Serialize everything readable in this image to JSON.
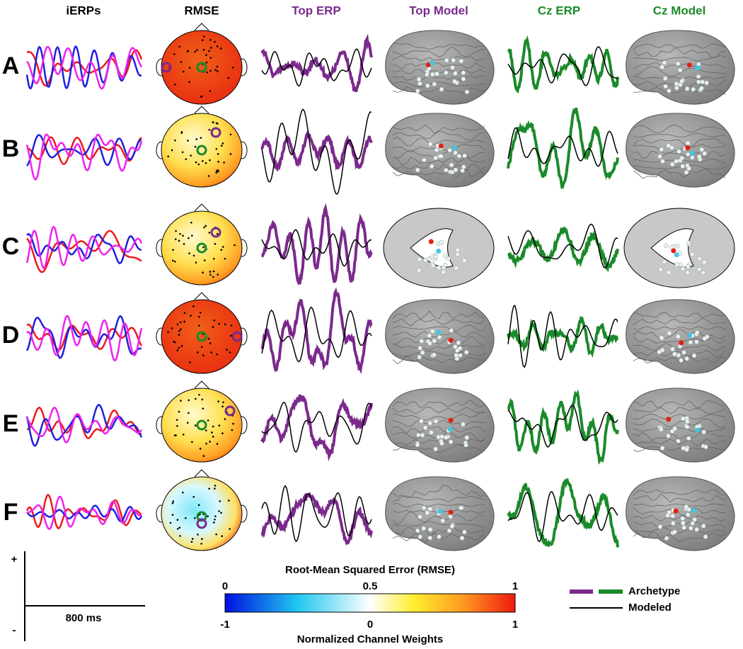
{
  "columns": [
    "iERPs",
    "RMSE",
    "Top ERP",
    "Top Model",
    "Cz ERP",
    "Cz Model"
  ],
  "rows": [
    "A",
    "B",
    "C",
    "D",
    "E",
    "F"
  ],
  "scale_bar": {
    "plus": "+",
    "minus": "-",
    "duration": "800 ms"
  },
  "colorbar": {
    "title": "Root-Mean Squared Error (RMSE)",
    "top_ticks": [
      0,
      0.5,
      1
    ],
    "bottom_ticks": [
      -1,
      0,
      1
    ],
    "label": "Normalized Channel Weights"
  },
  "legend": [
    "Archetype",
    "Modeled"
  ]
}
